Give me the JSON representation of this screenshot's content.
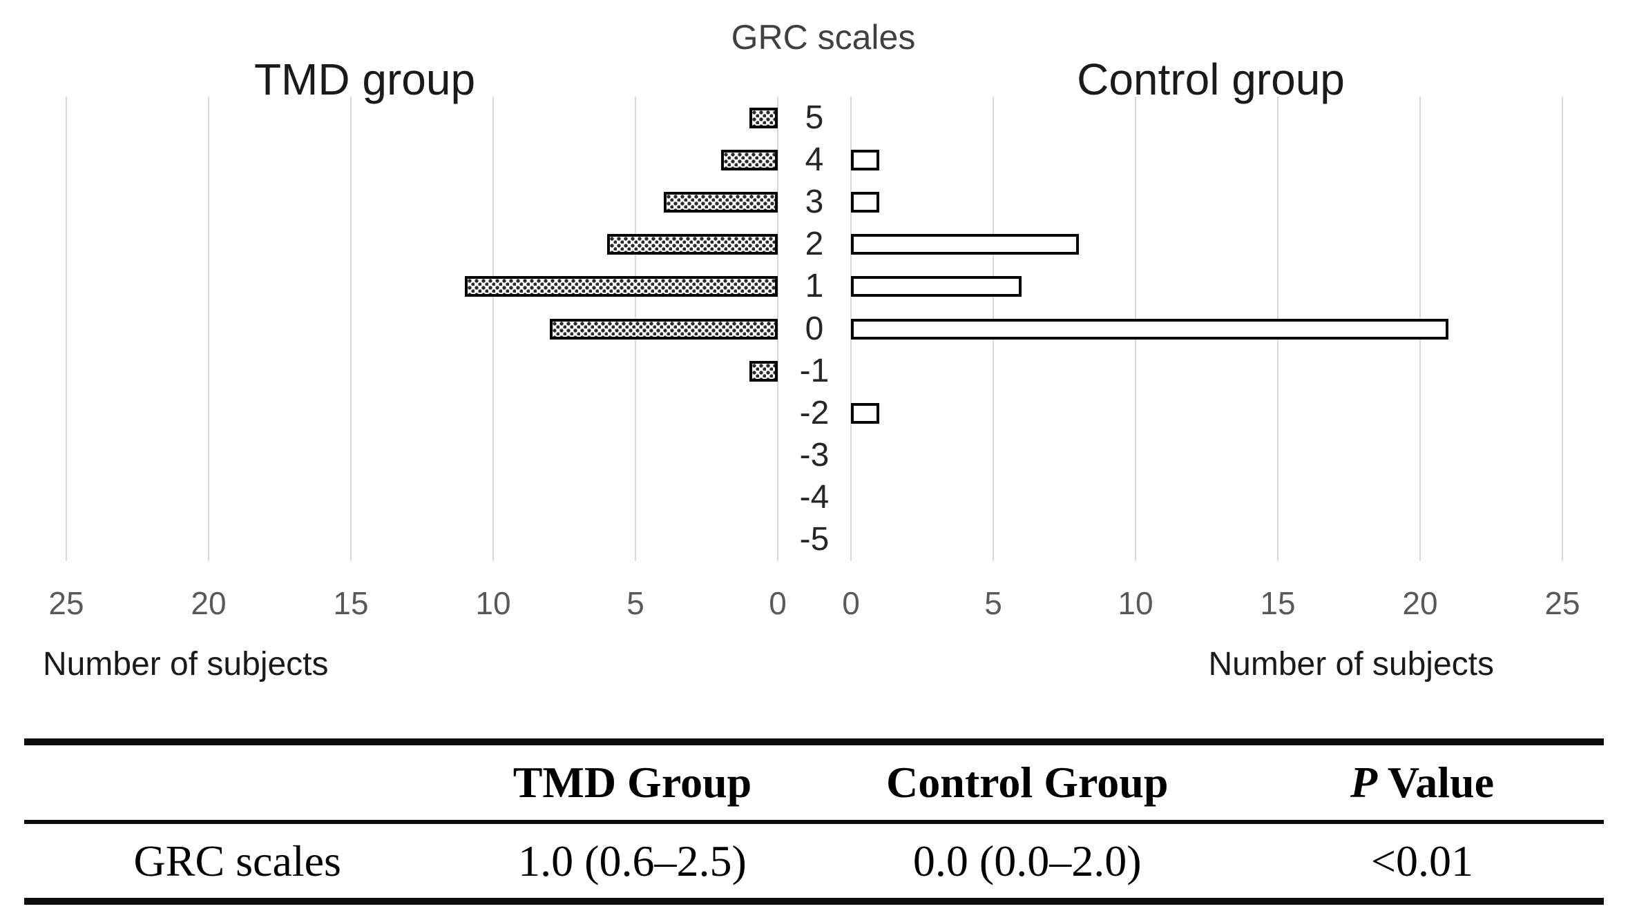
{
  "chart": {
    "title": "GRC scales",
    "left_title": "TMD group",
    "right_title": "Control group",
    "axis_label_left": "Number of subjects",
    "axis_label_right": "Number of subjects",
    "colors": {
      "grid": "#d9d9d9",
      "bar_border": "#000000",
      "tick_text": "#595959",
      "text": "#1a1a1a",
      "tmd_fill": "dotted-black-pattern",
      "control_fill": "#ffffff"
    }
  },
  "chart_data": {
    "type": "bar",
    "orientation": "horizontal-diverging",
    "title": "GRC scales",
    "categories": [
      5,
      4,
      3,
      2,
      1,
      0,
      -1,
      -2,
      -3,
      -4,
      -5
    ],
    "series": [
      {
        "name": "TMD group",
        "side": "left",
        "fill": "dotted-pattern",
        "values": [
          1,
          2,
          4,
          6,
          11,
          8,
          1,
          0,
          0,
          0,
          0
        ]
      },
      {
        "name": "Control group",
        "side": "right",
        "fill": "white",
        "values": [
          0,
          1,
          1,
          8,
          6,
          21,
          0,
          1,
          0,
          0,
          0
        ]
      }
    ],
    "x_ticks": [
      0,
      5,
      10,
      15,
      20,
      25
    ],
    "xlim": [
      0,
      25
    ],
    "xlabel": "Number of subjects",
    "ylabel": "GRC scales",
    "grid": true,
    "legend_position": "none"
  },
  "table": {
    "headers": [
      "",
      "TMD Group",
      "Control Group",
      "P Value"
    ],
    "p_header": {
      "italic": "P",
      "rest": " Value"
    },
    "rows": [
      [
        "GRC scales",
        "1.0 (0.6–2.5)",
        "0.0 (0.0–2.0)",
        "<0.01"
      ]
    ]
  }
}
